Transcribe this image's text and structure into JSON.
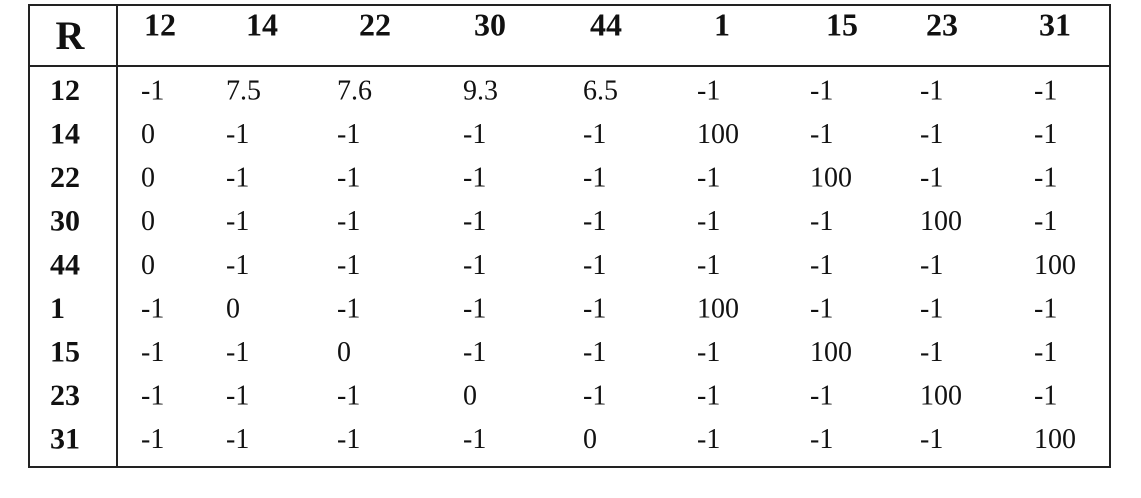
{
  "table": {
    "corner": "R",
    "columns": [
      12,
      14,
      22,
      30,
      44,
      1,
      15,
      23,
      31
    ],
    "rows": [
      {
        "label": 12,
        "values": [
          -1,
          7.5,
          7.6,
          9.3,
          6.5,
          -1,
          -1,
          -1,
          -1
        ]
      },
      {
        "label": 14,
        "values": [
          0,
          -1,
          -1,
          -1,
          -1,
          100,
          -1,
          -1,
          -1
        ]
      },
      {
        "label": 22,
        "values": [
          0,
          -1,
          -1,
          -1,
          -1,
          -1,
          100,
          -1,
          -1
        ]
      },
      {
        "label": 30,
        "values": [
          0,
          -1,
          -1,
          -1,
          -1,
          -1,
          -1,
          100,
          -1
        ]
      },
      {
        "label": 44,
        "values": [
          0,
          -1,
          -1,
          -1,
          -1,
          -1,
          -1,
          -1,
          100
        ]
      },
      {
        "label": 1,
        "values": [
          -1,
          0,
          -1,
          -1,
          -1,
          100,
          -1,
          -1,
          -1
        ]
      },
      {
        "label": 15,
        "values": [
          -1,
          -1,
          0,
          -1,
          -1,
          -1,
          100,
          -1,
          -1
        ]
      },
      {
        "label": 23,
        "values": [
          -1,
          -1,
          -1,
          0,
          -1,
          -1,
          -1,
          100,
          -1
        ]
      },
      {
        "label": 31,
        "values": [
          -1,
          -1,
          -1,
          -1,
          0,
          -1,
          -1,
          -1,
          100
        ]
      }
    ]
  }
}
